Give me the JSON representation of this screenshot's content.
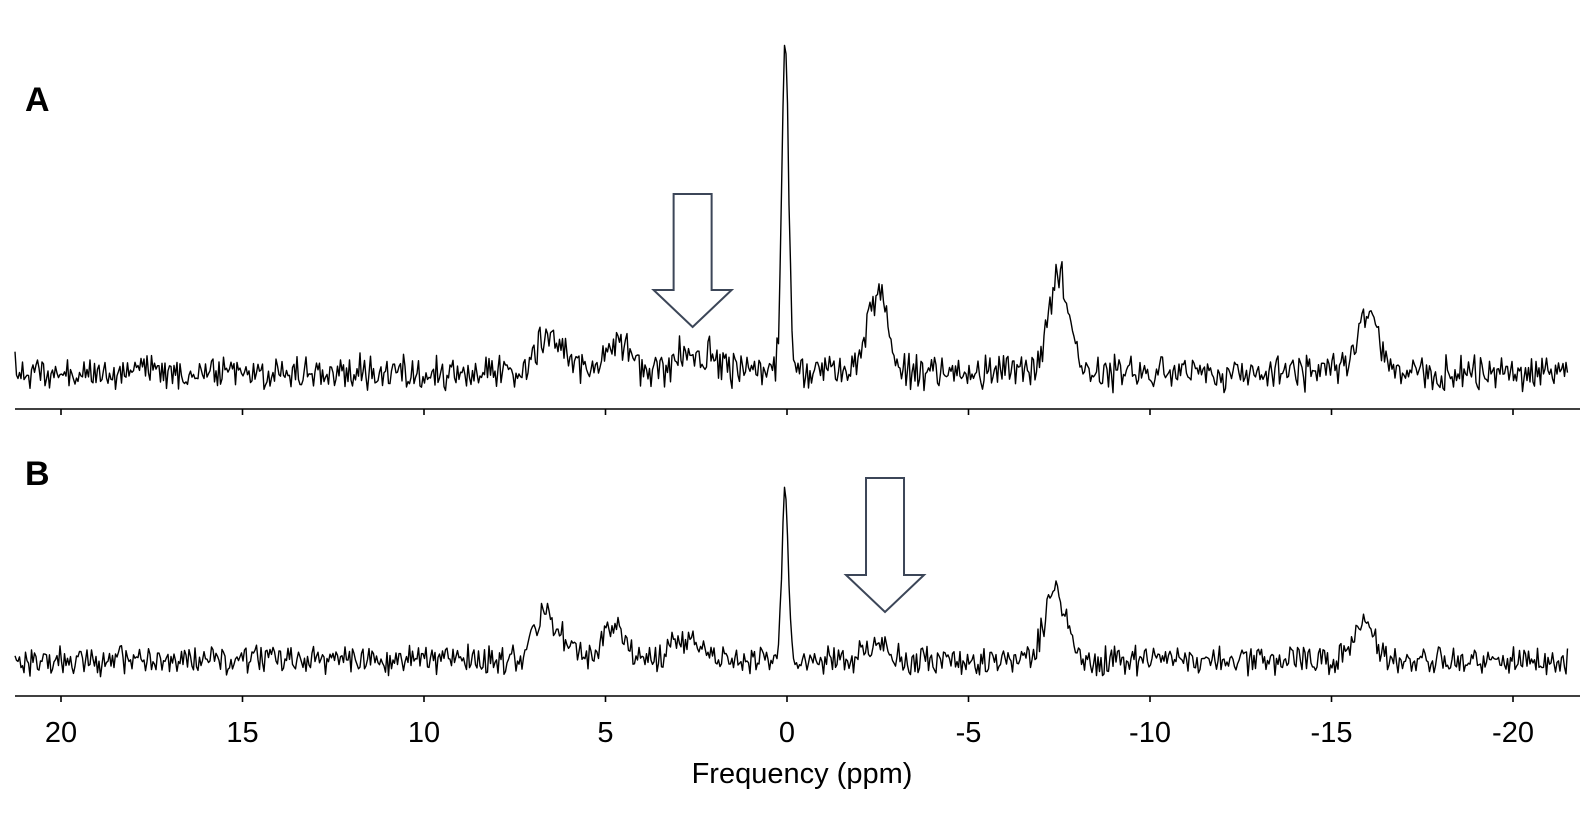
{
  "chart_data": {
    "type": "line",
    "xlabel": "Frequency (ppm)",
    "x_reversed": true,
    "xlim": [
      21.2,
      -21.6
    ],
    "x_ticks": [
      20,
      15,
      10,
      5,
      0,
      -5,
      -10,
      -15,
      -20
    ],
    "x_tick_labels": [
      "20",
      "15",
      "10",
      "5",
      "0",
      "-5",
      "-10",
      "-15",
      "-20"
    ],
    "panels": [
      {
        "label": "A",
        "arrow_at_ppm": 2.6,
        "peaks": [
          {
            "ppm": 6.7,
            "height": 0.09
          },
          {
            "ppm": 6.1,
            "height": 0.05
          },
          {
            "ppm": 4.7,
            "height": 0.11
          },
          {
            "ppm": 2.9,
            "height": 0.05
          },
          {
            "ppm": 2.2,
            "height": 0.05
          },
          {
            "ppm": 0.05,
            "height": 1.0
          },
          {
            "ppm": -2.5,
            "height": 0.24
          },
          {
            "ppm": -7.5,
            "height": 0.28
          },
          {
            "ppm": -16.0,
            "height": 0.16
          }
        ]
      },
      {
        "label": "B",
        "arrow_at_ppm": -2.7,
        "peaks": [
          {
            "ppm": 6.7,
            "height": 0.27
          },
          {
            "ppm": 6.1,
            "height": 0.1
          },
          {
            "ppm": 4.8,
            "height": 0.22
          },
          {
            "ppm": 3.0,
            "height": 0.1
          },
          {
            "ppm": 2.4,
            "height": 0.07
          },
          {
            "ppm": 0.05,
            "height": 1.0
          },
          {
            "ppm": -2.5,
            "height": 0.12
          },
          {
            "ppm": -7.4,
            "height": 0.42
          },
          {
            "ppm": -15.9,
            "height": 0.24
          }
        ]
      }
    ]
  }
}
